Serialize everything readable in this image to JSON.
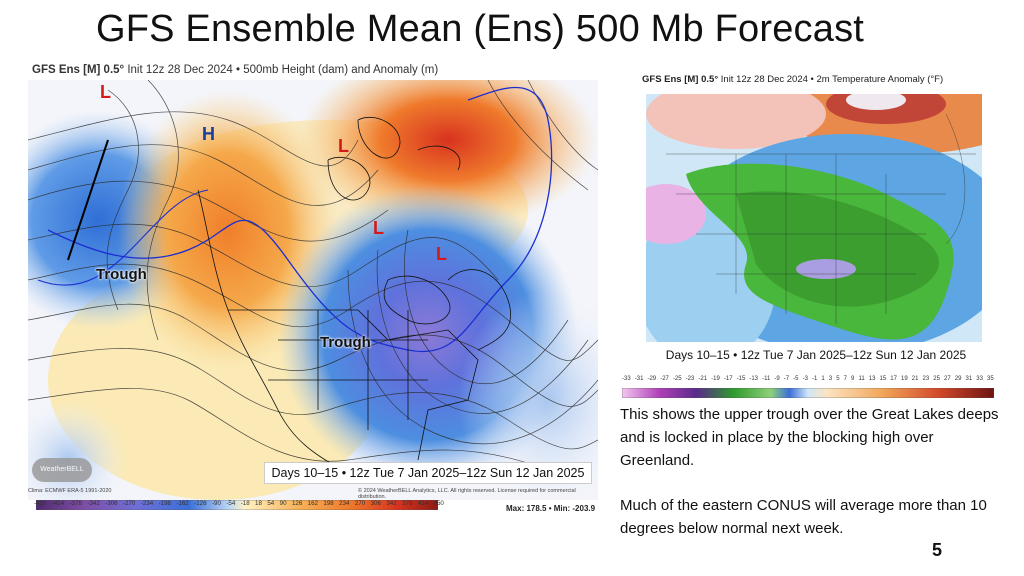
{
  "slide": {
    "title": "GFS Ensemble Mean (Ens) 500 Mb Forecast",
    "page_number": "5"
  },
  "left_map": {
    "header_bold": "GFS Ens [M] 0.5°",
    "header_rest": "Init 12z 28 Dec 2024 • 500mb Height (dam) and Anomaly (m)",
    "labels": {
      "trough_west": "Trough",
      "trough_east": "Trough",
      "high_alaska": "H",
      "low_alaska": "L",
      "low_arctic": "L",
      "low_hudson": "L",
      "low_labrador": "L"
    },
    "period": "Days 10–15 • 12z Tue 7 Jan 2025–12z Sun 12 Jan 2025",
    "credits_left": "Clima: ECMWF ERA-5 1991-2020",
    "credits_mid": "© 2024 WeatherBELL Analytics, LLC. All rights reserved. License required for commercial distribution.",
    "logo": "WeatherBELL",
    "max_min": "Max: 178.5 • Min: -203.9",
    "colorbar_ticks": [
      "-450",
      "-414",
      "-378",
      "-342",
      "-306",
      "-270",
      "-234",
      "-198",
      "-162",
      "-126",
      "-90",
      "-54",
      "-18",
      "18",
      "54",
      "90",
      "126",
      "162",
      "198",
      "234",
      "270",
      "306",
      "342",
      "378",
      "414",
      "450"
    ],
    "colors": {
      "negative": "#3b6fd9",
      "deep_negative": "#7a5cc4",
      "positive": "#f39a36",
      "deep_positive": "#e0452b",
      "neutral": "#f5f6fb"
    }
  },
  "right_map": {
    "header_bold": "GFS Ens [M] 0.5°",
    "header_rest": "Init 12z 28 Dec 2024 • 2m Temperature Anomaly (°F)",
    "period": "Days 10–15 • 12z Tue 7 Jan 2025–12z Sun 12 Jan 2025",
    "colorbar_ticks": [
      "-33",
      "-31",
      "-29",
      "-27",
      "-25",
      "-23",
      "-21",
      "-19",
      "-17",
      "-15",
      "-13",
      "-11",
      "-9",
      "-7",
      "-5",
      "-3",
      "-1",
      "1",
      "3",
      "5",
      "7",
      "9",
      "11",
      "13",
      "15",
      "17",
      "19",
      "21",
      "23",
      "25",
      "27",
      "29",
      "31",
      "33",
      "35"
    ]
  },
  "description": {
    "paragraph1": "This shows the upper trough over the Great Lakes deeps and is locked in place by the blocking high over Greenland.",
    "paragraph2": "Much of the eastern CONUS will average more than 10 degrees below normal next week."
  }
}
